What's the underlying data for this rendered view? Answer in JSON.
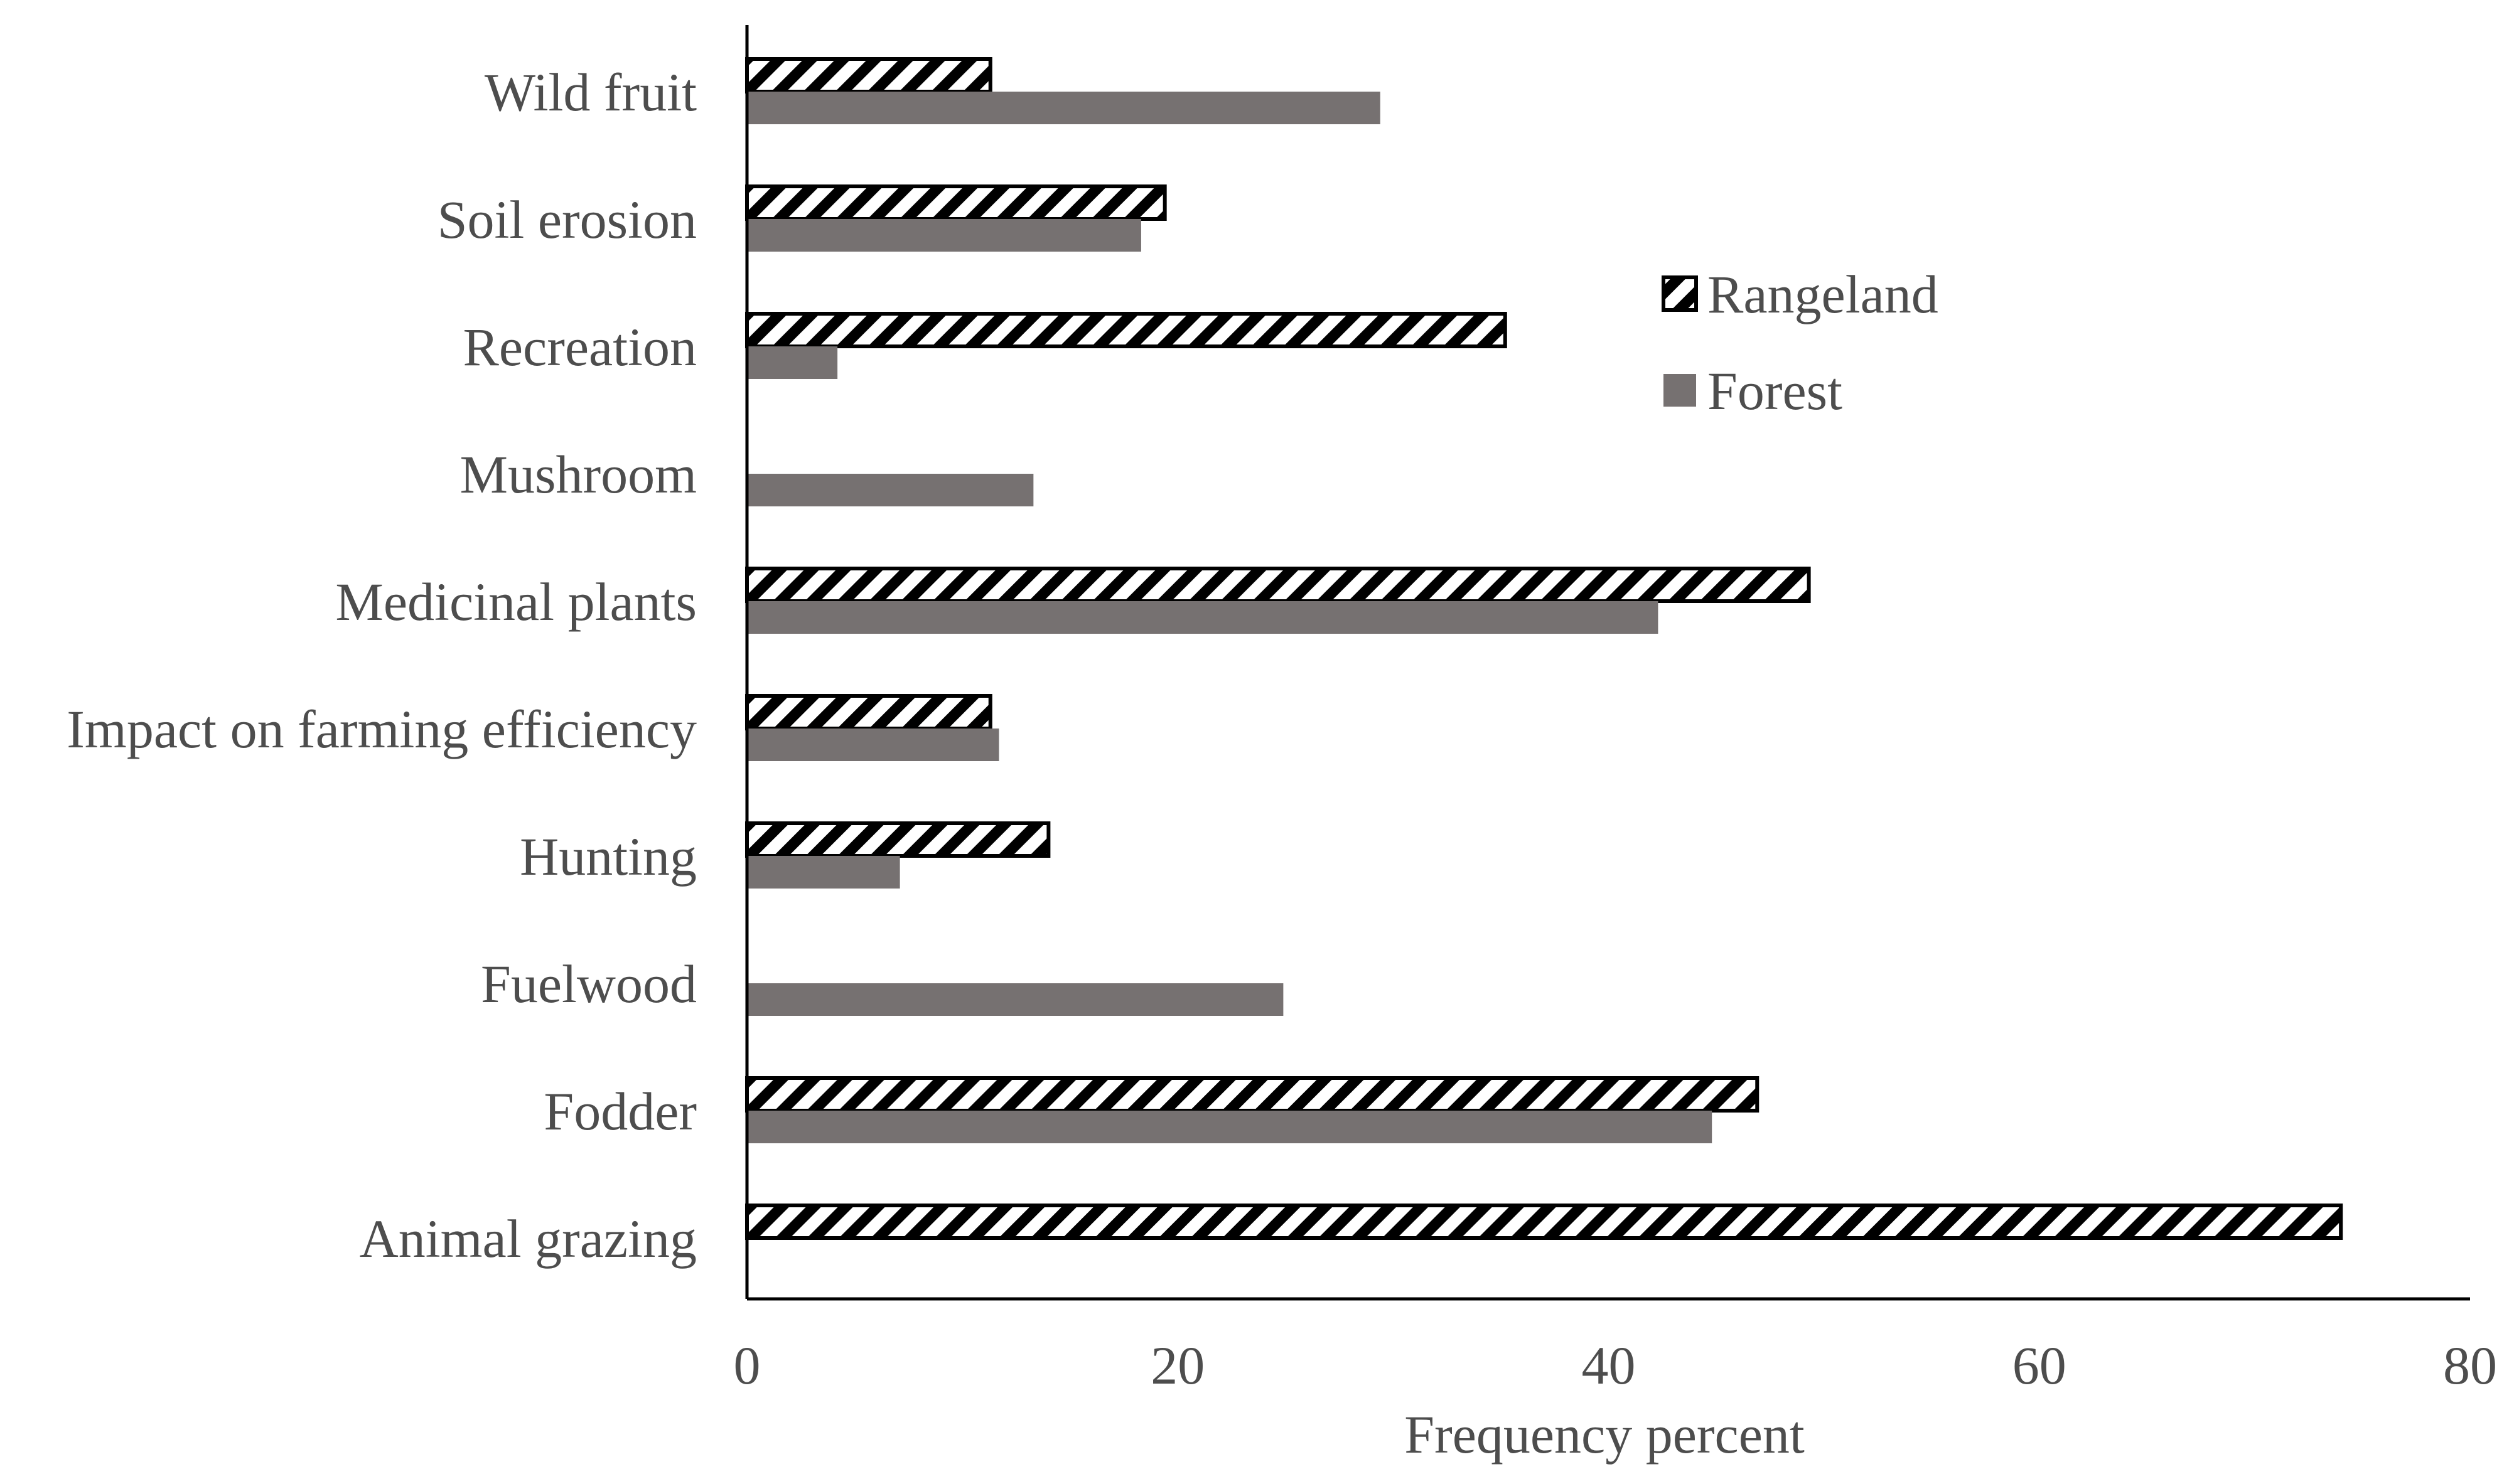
{
  "chart_data": {
    "type": "bar",
    "orientation": "horizontal",
    "title": "",
    "xlabel": "Frequency percent",
    "ylabel": "",
    "xlim": [
      0,
      80
    ],
    "xticks": [
      0,
      20,
      40,
      60,
      80
    ],
    "xtick_labels": [
      "0",
      "20",
      "40",
      "60",
      "80"
    ],
    "grid": false,
    "legend_position": "right-top",
    "categories": [
      "Wild fruit",
      "Soil erosion",
      "Recreation",
      "Mushroom",
      "Medicinal plants",
      "Impact on farming efficiency",
      "Hunting",
      "Fuelwood",
      "Fodder",
      "Animal grazing"
    ],
    "series": [
      {
        "name": "Rangeland",
        "pattern": "diagonal-hatch",
        "color": "#000000",
        "values": [
          11.3,
          19.4,
          35.2,
          0,
          49.3,
          11.3,
          14.0,
          0,
          46.9,
          74.0
        ]
      },
      {
        "name": "Forest",
        "pattern": "solid",
        "color": "#767171",
        "values": [
          29.4,
          18.3,
          4.2,
          13.3,
          42.3,
          11.7,
          7.1,
          24.9,
          44.8,
          0
        ]
      }
    ]
  }
}
